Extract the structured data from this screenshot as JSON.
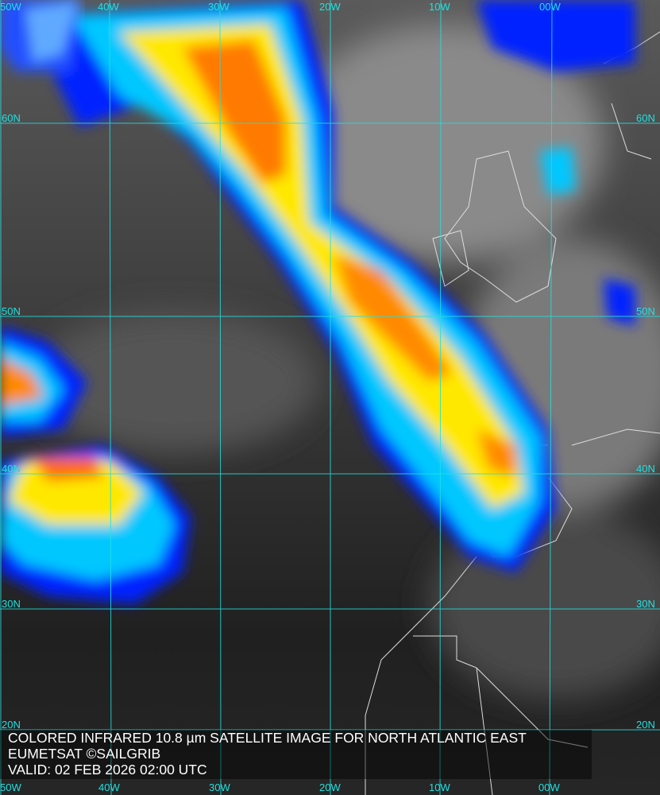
{
  "caption": {
    "title": "COLORED INFRARED 10.8 µm SATELLITE IMAGE FOR NORTH ATLANTIC EAST",
    "credit": "EUMETSAT ©SAILGRIB",
    "valid": "VALID:  02 FEB 2026 02:00 UTC"
  },
  "grid": {
    "longitudes": [
      "50W",
      "40W",
      "30W",
      "20W",
      "10W",
      "00W"
    ],
    "latitudes": [
      "60N",
      "50N",
      "40N",
      "30N",
      "20N"
    ],
    "color": "#22e0e0"
  },
  "colors": {
    "cold_top": "#e03000",
    "mid": "#ffee00",
    "low": "#00c8ff",
    "edge": "#0010ff",
    "clear": "#2a2a2a"
  }
}
